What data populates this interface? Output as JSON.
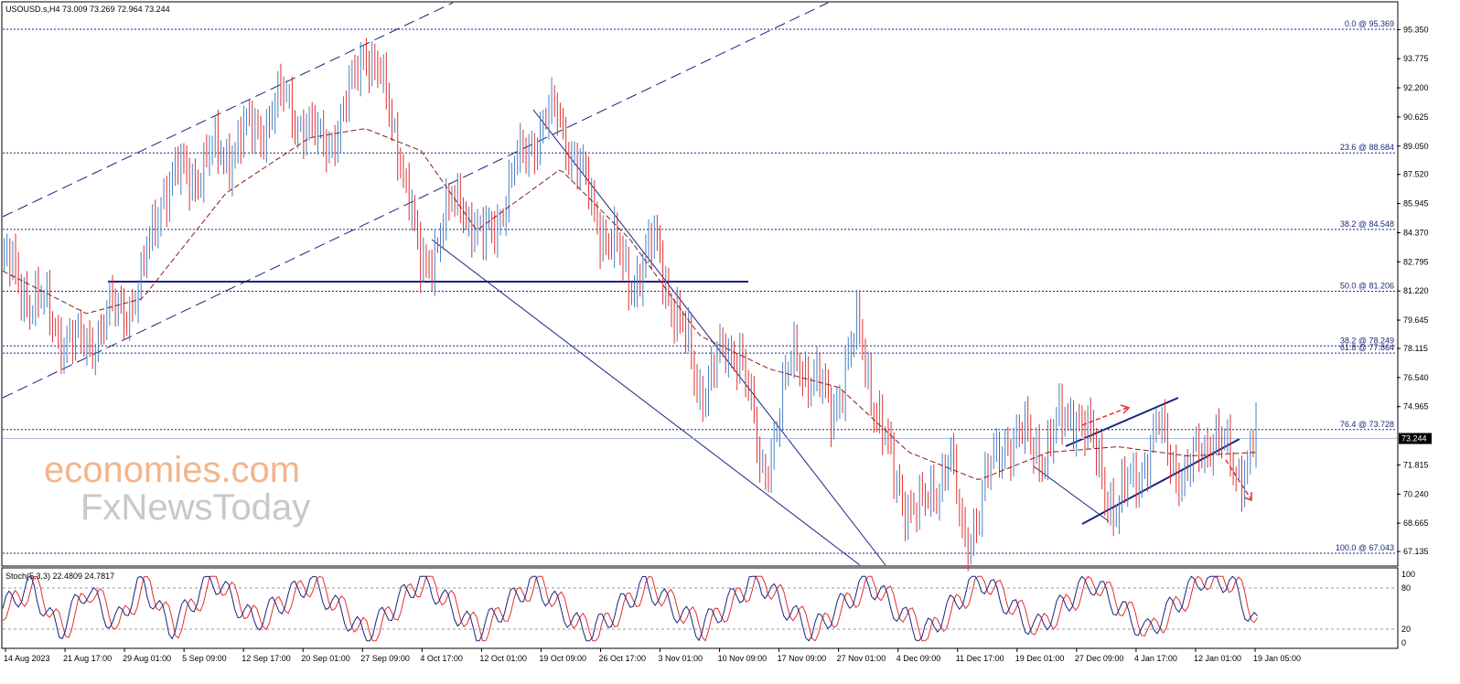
{
  "header": {
    "symbol_info": "USOUSD.s,H4  73.009 73.269 72.964 73.244"
  },
  "watermark": {
    "line1": "economies.com",
    "line2": "FxNewsToday"
  },
  "price_axis": {
    "ticks": [
      "95.350",
      "93.775",
      "92.200",
      "90.625",
      "89.050",
      "87.520",
      "85.945",
      "84.370",
      "82.795",
      "81.220",
      "79.645",
      "78.115",
      "76.540",
      "74.965",
      "71.815",
      "70.240",
      "68.665",
      "67.135"
    ],
    "current_price": "73.244"
  },
  "fib_levels": [
    {
      "label": "0.0 @ 95.369",
      "value": 95.369
    },
    {
      "label": "23.6 @ 88.684",
      "value": 88.684
    },
    {
      "label": "38.2 @ 84.548",
      "value": 84.548
    },
    {
      "label": "50.0 @ 81.206",
      "value": 81.206
    },
    {
      "label": "38.2 @ 78.249",
      "value": 78.249
    },
    {
      "label": "61.8 @ 77.864",
      "value": 77.864
    },
    {
      "label": "76.4 @ 73.728",
      "value": 73.728
    },
    {
      "label": "100.0 @ 67.043",
      "value": 67.043
    }
  ],
  "time_axis": [
    "14 Aug 2023",
    "21 Aug 17:00",
    "29 Aug 01:00",
    "5 Sep 09:00",
    "12 Sep 17:00",
    "20 Sep 01:00",
    "27 Sep 09:00",
    "4 Oct 17:00",
    "12 Oct 01:00",
    "19 Oct 09:00",
    "26 Oct 17:00",
    "3 Nov 01:00",
    "10 Nov 09:00",
    "17 Nov 09:00",
    "27 Nov 01:00",
    "4 Dec 09:00",
    "11 Dec 17:00",
    "19 Dec 01:00",
    "27 Dec 09:00",
    "4 Jan 17:00",
    "12 Jan 01:00",
    "19 Jan 05:00"
  ],
  "stoch": {
    "label": "Stoch(5,3,3) 22.4809 24.7817",
    "ticks": [
      "100",
      "80",
      "20",
      "0"
    ]
  },
  "colors": {
    "up": "#4a7fc1",
    "down": "#e03030",
    "ma": "#8b1a1a",
    "lines": "#1a237e"
  },
  "chart_data": {
    "type": "candlestick",
    "symbol": "USOUSD.s",
    "timeframe": "H4",
    "last_bar": {
      "open": 73.009,
      "high": 73.269,
      "low": 72.964,
      "close": 73.244
    },
    "ylim": [
      66.4,
      96.8
    ],
    "x_range": [
      "14 Aug 2023",
      "19 Jan 05:00"
    ],
    "price_path": [
      [
        0,
        82.8
      ],
      [
        0.055,
        78.0
      ],
      [
        0.07,
        79.2
      ],
      [
        0.1,
        81.3
      ],
      [
        0.115,
        86.8
      ],
      [
        0.14,
        87.8
      ],
      [
        0.175,
        89.5
      ],
      [
        0.205,
        91.6
      ],
      [
        0.225,
        89.2
      ],
      [
        0.245,
        90.2
      ],
      [
        0.26,
        94.8
      ],
      [
        0.285,
        89.5
      ],
      [
        0.3,
        82.3
      ],
      [
        0.33,
        86.5
      ],
      [
        0.345,
        83.5
      ],
      [
        0.38,
        89.5
      ],
      [
        0.4,
        90.8
      ],
      [
        0.42,
        86.5
      ],
      [
        0.45,
        81.8
      ],
      [
        0.47,
        83.6
      ],
      [
        0.5,
        76.0
      ],
      [
        0.53,
        78.5
      ],
      [
        0.545,
        71.0
      ],
      [
        0.57,
        78.0
      ],
      [
        0.595,
        74.8
      ],
      [
        0.615,
        79.0
      ],
      [
        0.64,
        71.0
      ],
      [
        0.66,
        69.0
      ],
      [
        0.68,
        72.5
      ],
      [
        0.69,
        67.4
      ],
      [
        0.72,
        73.4
      ],
      [
        0.75,
        72.7
      ],
      [
        0.77,
        75.1
      ],
      [
        0.8,
        69.3
      ],
      [
        0.83,
        73.6
      ],
      [
        0.85,
        71.0
      ],
      [
        0.87,
        73.9
      ],
      [
        0.885,
        71.0
      ],
      [
        0.9,
        73.6
      ]
    ],
    "moving_average_path": [
      [
        0,
        82.3
      ],
      [
        0.06,
        80.0
      ],
      [
        0.1,
        80.8
      ],
      [
        0.16,
        86.5
      ],
      [
        0.22,
        89.5
      ],
      [
        0.26,
        90.0
      ],
      [
        0.3,
        88.8
      ],
      [
        0.34,
        84.5
      ],
      [
        0.4,
        87.8
      ],
      [
        0.45,
        84.0
      ],
      [
        0.5,
        78.8
      ],
      [
        0.55,
        77.0
      ],
      [
        0.6,
        76.0
      ],
      [
        0.65,
        72.5
      ],
      [
        0.7,
        71.0
      ],
      [
        0.75,
        72.5
      ],
      [
        0.8,
        72.8
      ],
      [
        0.85,
        72.3
      ],
      [
        0.9,
        72.5
      ]
    ],
    "stochastic_path": [
      [
        0,
        50
      ],
      [
        0.02,
        85
      ],
      [
        0.04,
        15
      ],
      [
        0.06,
        80
      ],
      [
        0.08,
        25
      ],
      [
        0.1,
        90
      ],
      [
        0.12,
        20
      ],
      [
        0.15,
        95
      ],
      [
        0.18,
        30
      ],
      [
        0.22,
        90
      ],
      [
        0.26,
        10
      ],
      [
        0.3,
        95
      ],
      [
        0.34,
        15
      ],
      [
        0.38,
        90
      ],
      [
        0.42,
        10
      ],
      [
        0.46,
        85
      ],
      [
        0.5,
        20
      ],
      [
        0.54,
        95
      ],
      [
        0.58,
        15
      ],
      [
        0.62,
        90
      ],
      [
        0.66,
        10
      ],
      [
        0.7,
        95
      ],
      [
        0.74,
        20
      ],
      [
        0.78,
        90
      ],
      [
        0.82,
        15
      ],
      [
        0.86,
        95
      ],
      [
        0.88,
        90
      ],
      [
        0.9,
        22
      ]
    ],
    "stochastic_signal_last": 24.7817,
    "stochastic_main_last": 22.4809,
    "stoch_levels": [
      80,
      20
    ]
  }
}
